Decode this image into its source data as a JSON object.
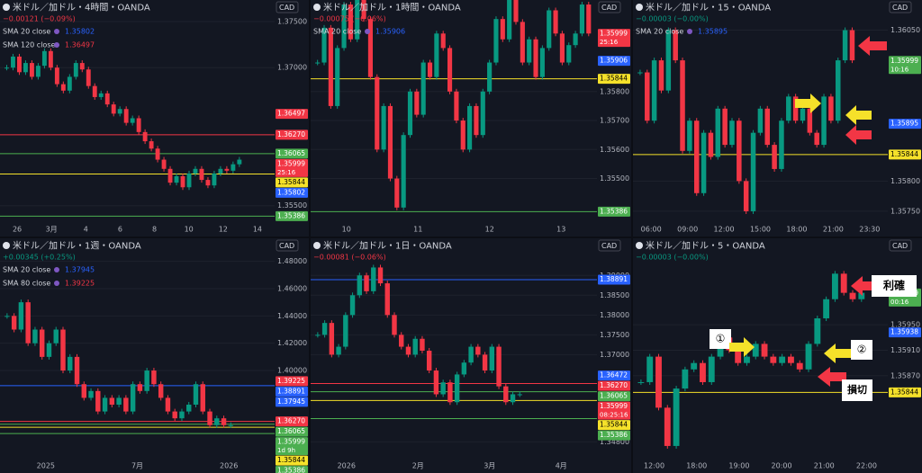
{
  "panels": [
    {
      "title": "米ドル／加ドル・4時間・OANDA",
      "change": "−0.00121 (−0.09%)",
      "change_color": "#f23645",
      "currency": "CAD",
      "indicators": [
        {
          "name": "SMA 20 close",
          "value": 1.35802,
          "color": "#2962ff"
        },
        {
          "name": "SMA 120 close",
          "value": 1.36497,
          "color": "#f23645"
        }
      ],
      "ylim": [
        1.35341,
        1.37676
      ],
      "yticks": [
        {
          "value": 1.375,
          "label": "1.37500"
        },
        {
          "value": 1.37,
          "label": "1.37000"
        },
        {
          "value": 1.355,
          "label": "1.35500"
        }
      ],
      "xlabels": [
        "26",
        "3月",
        "4",
        "6",
        "8",
        "10",
        "12",
        "14"
      ],
      "tags": [
        {
          "value": 1.36497,
          "label": "1.36497",
          "color": "#f23645"
        },
        {
          "value": 1.3627,
          "label": "1.36270",
          "color": "#f23645",
          "line": true
        },
        {
          "value": 1.36065,
          "label": "1.36065",
          "color": "#4caf50",
          "line": true
        },
        {
          "value": 1.35999,
          "label": "1.35999",
          "color": "#f23645",
          "note": "25:16"
        },
        {
          "value": 1.35844,
          "label": "1.35844",
          "color": "#f5e12a",
          "line": true
        },
        {
          "value": 1.35802,
          "label": "1.35802",
          "color": "#2962ff"
        },
        {
          "value": 1.35386,
          "label": "1.35386",
          "color": "#4caf50",
          "line": true
        }
      ],
      "closes": [
        1.37,
        1.3712,
        1.3695,
        1.3705,
        1.369,
        1.3702,
        1.3718,
        1.37,
        1.3682,
        1.3675,
        1.369,
        1.3705,
        1.3698,
        1.368,
        1.3668,
        1.3672,
        1.366,
        1.365,
        1.3655,
        1.364,
        1.3645,
        1.363,
        1.362,
        1.3612,
        1.36,
        1.359,
        1.3575,
        1.3582,
        1.357,
        1.3585,
        1.359,
        1.3578,
        1.3572,
        1.3585,
        1.359,
        1.3588,
        1.3595,
        1.36
      ]
    },
    {
      "title": "米ドル／加ドル・1時間・OANDA",
      "change": "−0.00075 (−0.06%)",
      "change_color": "#f23645",
      "currency": "CAD",
      "indicators": [
        {
          "name": "SMA 20 close",
          "value": 1.35906,
          "color": "#2962ff"
        }
      ],
      "ylim": [
        1.35356,
        1.36097
      ],
      "yticks": [
        {
          "value": 1.358,
          "label": "1.35800"
        },
        {
          "value": 1.357,
          "label": "1.35700"
        },
        {
          "value": 1.356,
          "label": "1.35600"
        },
        {
          "value": 1.355,
          "label": "1.35500"
        }
      ],
      "xlabels": [
        "10",
        "11",
        "12",
        "13"
      ],
      "tags": [
        {
          "value": 1.35999,
          "label": "1.35999",
          "color": "#f23645",
          "note": "25:16"
        },
        {
          "value": 1.35906,
          "label": "1.35906",
          "color": "#2962ff"
        },
        {
          "value": 1.35844,
          "label": "1.35844",
          "color": "#f5e12a",
          "line": true
        },
        {
          "value": 1.35386,
          "label": "1.35386",
          "color": "#4caf50",
          "line": true
        }
      ],
      "closes": [
        1.359,
        1.3602,
        1.3575,
        1.3595,
        1.361,
        1.3598,
        1.362,
        1.3605,
        1.3585,
        1.356,
        1.3575,
        1.355,
        1.354,
        1.3565,
        1.358,
        1.3572,
        1.359,
        1.3585,
        1.36,
        1.3595,
        1.358,
        1.357,
        1.356,
        1.3575,
        1.3565,
        1.358,
        1.359,
        1.3605,
        1.3598,
        1.3612,
        1.3604,
        1.359,
        1.3598,
        1.3585,
        1.3595,
        1.3608,
        1.36,
        1.359,
        1.3596,
        1.36,
        1.361,
        1.36
      ]
    },
    {
      "title": "米ドル／加ドル・15・OANDA",
      "change": "−0.00003 (−0.00%)",
      "change_color": "#089981",
      "currency": "CAD",
      "indicators": [
        {
          "name": "SMA 20 close",
          "value": 1.35895,
          "color": "#2962ff"
        }
      ],
      "ylim": [
        1.35735,
        1.36091
      ],
      "yticks": [
        {
          "value": 1.3605,
          "label": "1.36050"
        },
        {
          "value": 1.358,
          "label": "1.35800"
        },
        {
          "value": 1.3575,
          "label": "1.35750"
        }
      ],
      "xlabels": [
        "06:00",
        "09:00",
        "12:00",
        "15:00",
        "18:00",
        "21:00",
        "23:30"
      ],
      "tags": [
        {
          "value": 1.35999,
          "label": "1.35999",
          "color": "#4caf50",
          "note": "10:16"
        },
        {
          "value": 1.35895,
          "label": "1.35895",
          "color": "#2962ff"
        },
        {
          "value": 1.35844,
          "label": "1.35844",
          "color": "#f5e12a",
          "line": true
        }
      ],
      "closes": [
        1.3598,
        1.359,
        1.36,
        1.3595,
        1.3605,
        1.36,
        1.3585,
        1.359,
        1.3578,
        1.3588,
        1.3584,
        1.3592,
        1.3586,
        1.359,
        1.358,
        1.3575,
        1.3588,
        1.3592,
        1.3586,
        1.3582,
        1.359,
        1.3594,
        1.359,
        1.3592,
        1.3588,
        1.3586,
        1.3594,
        1.359,
        1.36,
        1.3605,
        1.36
      ]
    },
    {
      "title": "米ドル／加ドル・1週・OANDA",
      "change": "+0.00345 (+0.25%)",
      "change_color": "#089981",
      "currency": "CAD",
      "indicators": [
        {
          "name": "SMA 20 close",
          "value": 1.37945,
          "color": "#2962ff"
        },
        {
          "name": "SMA 80 close",
          "value": 1.39225,
          "color": "#f23645"
        }
      ],
      "ylim": [
        1.3368,
        1.4929
      ],
      "yticks": [
        {
          "value": 1.48,
          "label": "1.48000"
        },
        {
          "value": 1.46,
          "label": "1.46000"
        },
        {
          "value": 1.44,
          "label": "1.44000"
        },
        {
          "value": 1.42,
          "label": "1.42000"
        },
        {
          "value": 1.4,
          "label": "1.40000"
        }
      ],
      "xlabels": [
        "2025",
        "7月",
        "2026"
      ],
      "tags": [
        {
          "value": 1.39225,
          "label": "1.39225",
          "color": "#f23645"
        },
        {
          "value": 1.38891,
          "label": "1.38891",
          "color": "#2962ff",
          "line": true
        },
        {
          "value": 1.37945,
          "label": "1.37945",
          "color": "#2962ff"
        },
        {
          "value": 1.3627,
          "label": "1.36270",
          "color": "#f23645",
          "line": true
        },
        {
          "value": 1.36065,
          "label": "1.36065",
          "color": "#4caf50",
          "line": true
        },
        {
          "value": 1.35999,
          "label": "1.35999",
          "color": "#4caf50",
          "note": "1d 9h"
        },
        {
          "value": 1.35844,
          "label": "1.35844",
          "color": "#f5e12a",
          "line": true
        },
        {
          "value": 1.35386,
          "label": "1.35386",
          "color": "#4caf50",
          "line": true
        }
      ],
      "closes": [
        1.44,
        1.43,
        1.45,
        1.42,
        1.43,
        1.41,
        1.42,
        1.43,
        1.4,
        1.41,
        1.39,
        1.38,
        1.385,
        1.37,
        1.38,
        1.375,
        1.38,
        1.37,
        1.39,
        1.385,
        1.4,
        1.39,
        1.38,
        1.37,
        1.365,
        1.37,
        1.375,
        1.39,
        1.37,
        1.36,
        1.365,
        1.36,
        1.36
      ]
    },
    {
      "title": "米ドル／加ドル・1日・OANDA",
      "change": "−0.00081 (−0.06%)",
      "change_color": "#f23645",
      "currency": "CAD",
      "indicators": [],
      "ylim": [
        1.34422,
        1.398
      ],
      "yticks": [
        {
          "value": 1.39,
          "label": "1.39000"
        },
        {
          "value": 1.385,
          "label": "1.38500"
        },
        {
          "value": 1.38,
          "label": "1.38000"
        },
        {
          "value": 1.375,
          "label": "1.37500"
        },
        {
          "value": 1.37,
          "label": "1.37000"
        },
        {
          "value": 1.348,
          "label": "1.34800"
        }
      ],
      "xlabels": [
        "2026",
        "2月",
        "3月",
        "4月"
      ],
      "tags": [
        {
          "value": 1.38891,
          "label": "1.38891",
          "color": "#2962ff",
          "line": true
        },
        {
          "value": 1.36472,
          "label": "1.36472",
          "color": "#2962ff"
        },
        {
          "value": 1.3627,
          "label": "1.36270",
          "color": "#f23645",
          "line": true
        },
        {
          "value": 1.36065,
          "label": "1.36065",
          "color": "#4caf50",
          "line": true
        },
        {
          "value": 1.35999,
          "label": "1.35999",
          "color": "#f23645",
          "note": "08:25:16"
        },
        {
          "value": 1.35844,
          "label": "1.35844",
          "color": "#f5e12a",
          "line": true
        },
        {
          "value": 1.35386,
          "label": "1.35386",
          "color": "#4caf50",
          "line": true
        }
      ],
      "closes": [
        1.375,
        1.378,
        1.37,
        1.372,
        1.38,
        1.385,
        1.39,
        1.386,
        1.392,
        1.388,
        1.38,
        1.375,
        1.372,
        1.37,
        1.374,
        1.371,
        1.366,
        1.36,
        1.363,
        1.358,
        1.365,
        1.368,
        1.372,
        1.37,
        1.366,
        1.372,
        1.362,
        1.358,
        1.36,
        1.36
      ]
    },
    {
      "title": "米ドル／加ドル・5・OANDA",
      "change": "−0.00003 (−0.00%)",
      "change_color": "#089981",
      "currency": "CAD",
      "indicators": [],
      "ylim": [
        1.35743,
        1.36077
      ],
      "yticks": [
        {
          "value": 1.3595,
          "label": "1.35950"
        },
        {
          "value": 1.3591,
          "label": "1.35910"
        },
        {
          "value": 1.3587,
          "label": "1.35870"
        }
      ],
      "xlabels": [
        "12:00",
        "18:00",
        "19:00",
        "20:00",
        "21:00",
        "22:00"
      ],
      "tags": [
        {
          "value": 1.35999,
          "label": "1.35999",
          "color": "#4caf50",
          "note": "00:16"
        },
        {
          "value": 1.35938,
          "label": "1.35938",
          "color": "#2962ff"
        },
        {
          "value": 1.35844,
          "label": "1.35844",
          "color": "#f5e12a",
          "line": true
        }
      ],
      "closes": [
        1.3586,
        1.359,
        1.3582,
        1.3576,
        1.3585,
        1.3588,
        1.3589,
        1.3586,
        1.359,
        1.3593,
        1.3591,
        1.3589,
        1.359,
        1.3592,
        1.359,
        1.3589,
        1.359,
        1.3589,
        1.3588,
        1.3592,
        1.3596,
        1.3599,
        1.3603,
        1.36,
        1.3599,
        1.36
      ],
      "annotations": [
        "利確",
        "①",
        "②",
        "損切"
      ]
    }
  ]
}
